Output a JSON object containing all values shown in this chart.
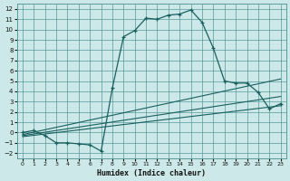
{
  "xlabel": "Humidex (Indice chaleur)",
  "bg_color": "#cce8e8",
  "grid_color": "#5a9a9a",
  "line_color": "#1a5f5f",
  "xlim": [
    -0.5,
    23.5
  ],
  "ylim": [
    -2.5,
    12.5
  ],
  "xticks": [
    0,
    1,
    2,
    3,
    4,
    5,
    6,
    7,
    8,
    9,
    10,
    11,
    12,
    13,
    14,
    15,
    16,
    17,
    18,
    19,
    20,
    21,
    22,
    23
  ],
  "yticks": [
    -2,
    -1,
    0,
    1,
    2,
    3,
    4,
    5,
    6,
    7,
    8,
    9,
    10,
    11,
    12
  ],
  "main_line": {
    "x": [
      0,
      1,
      2,
      3,
      4,
      5,
      6,
      7,
      8,
      9,
      10,
      11,
      12,
      13,
      14,
      15,
      16,
      17,
      18,
      19,
      20,
      21,
      22,
      23
    ],
    "y": [
      0.0,
      0.2,
      -0.3,
      -1.0,
      -1.0,
      -1.1,
      -1.2,
      -1.8,
      4.3,
      9.3,
      9.9,
      11.1,
      11.0,
      11.4,
      11.5,
      11.9,
      10.7,
      8.2,
      5.0,
      4.8,
      4.8,
      3.9,
      2.3,
      2.8
    ]
  },
  "line_upper": {
    "x": [
      0,
      23
    ],
    "y": [
      -0.2,
      5.2
    ]
  },
  "line_mid": {
    "x": [
      0,
      23
    ],
    "y": [
      -0.3,
      3.5
    ]
  },
  "line_lower": {
    "x": [
      0,
      23
    ],
    "y": [
      -0.4,
      2.6
    ]
  }
}
